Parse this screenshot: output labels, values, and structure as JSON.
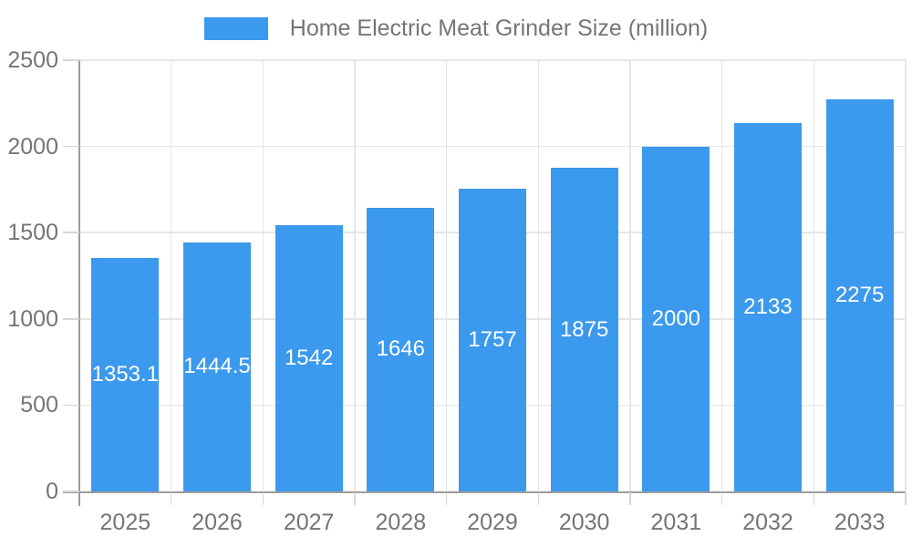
{
  "legend": {
    "label": "Home Electric Meat Grinder Size (million)"
  },
  "colors": {
    "bar-color": "#3b99ee",
    "grid-color": "#e6e6e6",
    "axis-color": "#9c9c9c",
    "tick-color": "#d6d6d6",
    "text-color": "#757575",
    "bar-label-color": "#ffffff"
  },
  "chart_data": {
    "type": "bar",
    "title": "",
    "xlabel": "",
    "ylabel": "",
    "series_name": "Home Electric Meat Grinder Size (million)",
    "categories": [
      "2025",
      "2026",
      "2027",
      "2028",
      "2029",
      "2030",
      "2031",
      "2032",
      "2033"
    ],
    "values": [
      1353.1,
      1444.5,
      1542,
      1646,
      1757,
      1875,
      2000,
      2133,
      2275
    ],
    "bar_labels": [
      "1353.1",
      "1444.5",
      "1542",
      "1646",
      "1757",
      "1875",
      "2000",
      "2133",
      "2275"
    ],
    "ylim": [
      0,
      2500
    ],
    "y_ticks": [
      0,
      500,
      1000,
      1500,
      2000,
      2500
    ],
    "grid": true,
    "legend_position": "top",
    "bar_label_position": "inside-center"
  }
}
